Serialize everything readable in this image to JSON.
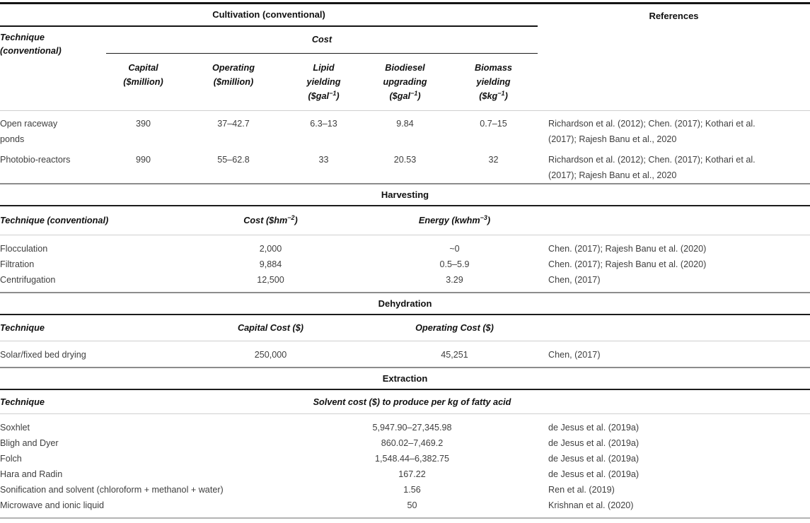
{
  "table": {
    "references_header": "References",
    "cultivation": {
      "title": "Cultivation (conventional)",
      "technique_lines": [
        "Technique",
        "(conventional)"
      ],
      "cost_group": "Cost",
      "columns": {
        "capital": {
          "lines": [
            "Capital"
          ],
          "unit_pre": "($million)",
          "unit_sup": "",
          "unit_post": ""
        },
        "operating": {
          "lines": [
            "Operating"
          ],
          "unit_pre": "($million)",
          "unit_sup": "",
          "unit_post": ""
        },
        "lipid": {
          "lines": [
            "Lipid",
            "yielding"
          ],
          "unit_pre": "($gal",
          "unit_sup": "−1",
          "unit_post": ")"
        },
        "biodiesel": {
          "lines": [
            "Biodiesel",
            "upgrading"
          ],
          "unit_pre": "($gal",
          "unit_sup": "−1",
          "unit_post": ")"
        },
        "biomass": {
          "lines": [
            "Biomass",
            "yielding"
          ],
          "unit_pre": "($kg",
          "unit_sup": "−1",
          "unit_post": ")"
        }
      },
      "rows": [
        {
          "technique_line1": "Open raceway",
          "technique_line2": "ponds",
          "capital": "390",
          "operating": "37–42.7",
          "lipid": "6.3–13",
          "biodiesel": "9.84",
          "biomass": "0.7–15",
          "reference": "Richardson et al. (2012); Chen. (2017); Kothari et al. (2017); Rajesh Banu et al., 2020"
        },
        {
          "technique_line1": "Photobio-reactors",
          "capital": "990",
          "operating": "55–62.8",
          "lipid": "33",
          "biodiesel": "20.53",
          "biomass": "32",
          "reference": "Richardson et al. (2012); Chen. (2017); Kothari et al. (2017); Rajesh Banu et al., 2020"
        }
      ]
    },
    "harvesting": {
      "title": "Harvesting",
      "technique_header": "Technique (conventional)",
      "cost_header": {
        "pre": "Cost ($hm",
        "sup": "−2",
        "post": ")"
      },
      "energy_header": {
        "pre": "Energy (kwhm",
        "sup": "−3",
        "post": ")"
      },
      "rows": [
        {
          "technique": "Flocculation",
          "cost": "2,000",
          "energy": "~0",
          "reference": "Chen. (2017); Rajesh Banu et al. (2020)"
        },
        {
          "technique": "Filtration",
          "cost": "9,884",
          "energy": "0.5–5.9",
          "reference": "Chen. (2017); Rajesh Banu et al. (2020)"
        },
        {
          "technique": "Centrifugation",
          "cost": "12,500",
          "energy": "3.29",
          "reference": "Chen, (2017)"
        }
      ]
    },
    "dehydration": {
      "title": "Dehydration",
      "technique_header": "Technique",
      "capital_header": "Capital Cost ($)",
      "operating_header": "Operating Cost ($)",
      "rows": [
        {
          "technique": "Solar/fixed bed drying",
          "capital": "250,000",
          "operating": "45,251",
          "reference": "Chen, (2017)"
        }
      ]
    },
    "extraction": {
      "title": "Extraction",
      "technique_header": "Technique",
      "cost_header": "Solvent cost ($) to produce per kg of fatty acid",
      "rows": [
        {
          "technique": "Soxhlet",
          "cost": "5,947.90–27,345.98",
          "reference": "de Jesus et al. (2019a)"
        },
        {
          "technique": "Bligh and Dyer",
          "cost": "860.02–7,469.2",
          "reference": "de Jesus et al. (2019a)"
        },
        {
          "technique": "Folch",
          "cost": "1,548.44–6,382.75",
          "reference": "de Jesus et al. (2019a)"
        },
        {
          "technique": "Hara and Radin",
          "cost": "167.22",
          "reference": "de Jesus et al. (2019a)"
        },
        {
          "technique": "Sonification and solvent (chloroform + methanol + water)",
          "cost": "1.56",
          "reference": "Ren et al. (2019)"
        },
        {
          "technique": "Microwave and ionic liquid",
          "cost": "50",
          "reference": "Krishnan et al. (2020)"
        }
      ]
    }
  },
  "colors": {
    "strong_rule": "#141414",
    "black_rule": "#1c1c1c",
    "light_rule": "#cfcfcf",
    "section_divider": "#8c8c8c",
    "bottom_rule": "#b3b3b3",
    "header_text": "#101010",
    "body_text": "#3f3f3f"
  }
}
